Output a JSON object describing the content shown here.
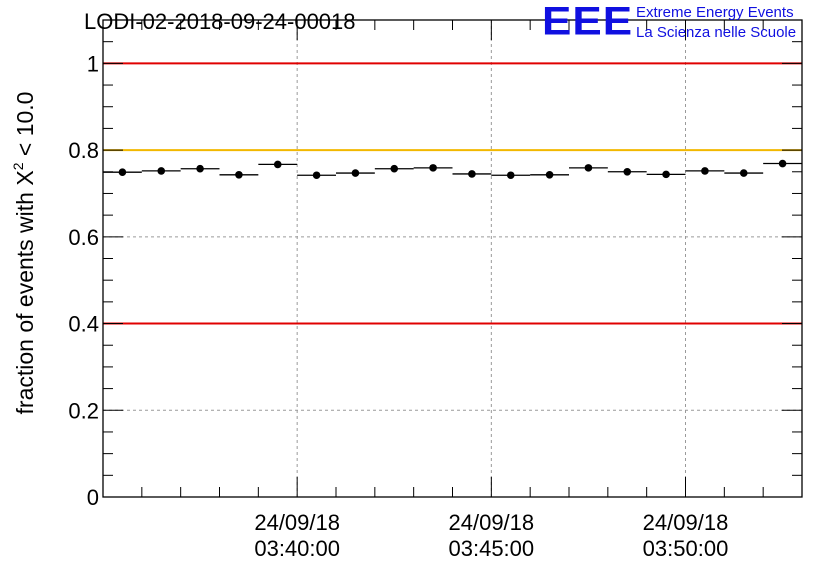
{
  "header": {
    "title": "LODI-02-2018-09-24-00018",
    "logo_text": "EEE",
    "logo_line1": "Extreme Energy Events",
    "logo_line2": "La Scienza nelle Scuole"
  },
  "colors": {
    "ref_red": "#e00000",
    "ref_yellow": "#f2b800",
    "grid": "#9a9a9a",
    "marker": "#000000"
  },
  "chart_data": {
    "type": "scatter",
    "title": "LODI-02-2018-09-24-00018",
    "xlabel": "",
    "ylabel_prefix": "fraction of events with ",
    "ylabel_symbol": "X",
    "ylabel_sup": "2",
    "ylabel_suffix": " < 10.0",
    "ylim": [
      0,
      1.1
    ],
    "yticks": [
      0,
      0.2,
      0.4,
      0.6,
      0.8,
      1
    ],
    "ytick_labels": [
      "0",
      "0.2",
      "0.4",
      "0.6",
      "0.8",
      "1"
    ],
    "xlim_minutes": [
      35.0,
      53.0
    ],
    "xticks_minutes": [
      40,
      45,
      50
    ],
    "xtick_labels": [
      {
        "date": "24/09/18",
        "time": "03:40:00"
      },
      {
        "date": "24/09/18",
        "time": "03:45:00"
      },
      {
        "date": "24/09/18",
        "time": "03:50:00"
      }
    ],
    "bin_width_minutes": 1.0,
    "x_minutes": [
      35.5,
      36.5,
      37.5,
      38.5,
      39.5,
      40.5,
      41.5,
      42.5,
      43.5,
      44.5,
      45.5,
      46.5,
      47.5,
      48.5,
      49.5,
      50.5,
      51.5,
      52.5
    ],
    "values": [
      0.749,
      0.752,
      0.757,
      0.743,
      0.767,
      0.742,
      0.747,
      0.757,
      0.759,
      0.745,
      0.742,
      0.743,
      0.759,
      0.75,
      0.744,
      0.752,
      0.747,
      0.769
    ],
    "reference_lines": [
      {
        "y": 1.0,
        "color": "red"
      },
      {
        "y": 0.8,
        "color": "yellow"
      },
      {
        "y": 0.4,
        "color": "red"
      }
    ],
    "grid": true
  }
}
